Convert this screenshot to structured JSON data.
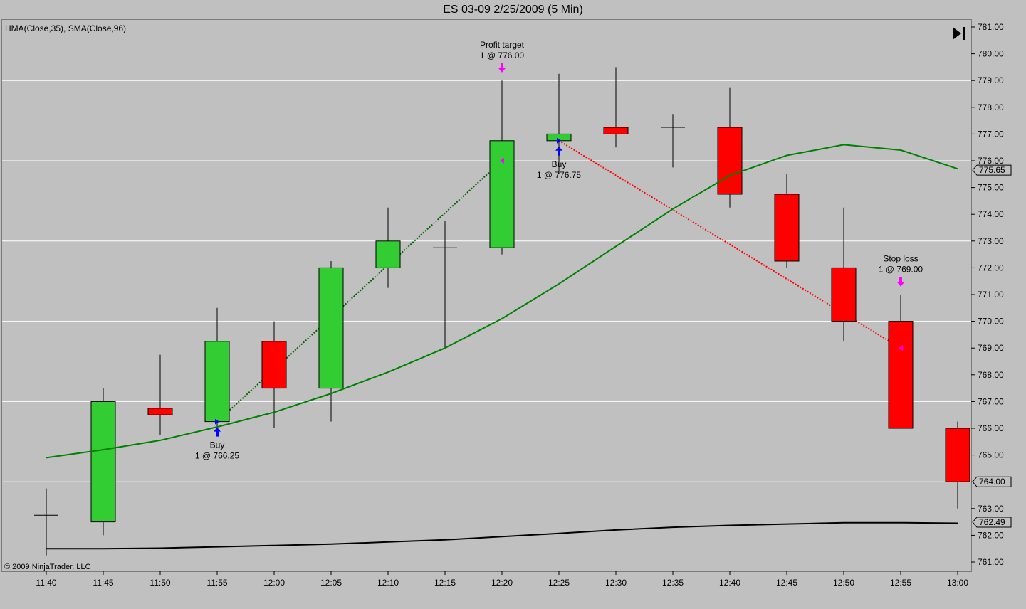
{
  "title": "ES 03-09  2/25/2009 (5 Min)",
  "indicator_label": "HMA(Close,35), SMA(Close,96)",
  "copyright": "© 2009 NinjaTrader, LLC",
  "goto_end_icon": "skip-to-end-icon",
  "colors": {
    "background": "#c0c0c0",
    "up": "#32cd32",
    "down": "#ff0000",
    "hma": "#008000",
    "sma": "#000000",
    "marker": "#ff00ff",
    "buy": "#0000ff"
  },
  "chart_data": {
    "type": "candlestick",
    "ylim": [
      760.6,
      781.3
    ],
    "y_ticks": [
      "761.00",
      "762.00",
      "763.00",
      "764.00",
      "765.00",
      "766.00",
      "767.00",
      "768.00",
      "769.00",
      "770.00",
      "771.00",
      "772.00",
      "773.00",
      "774.00",
      "775.00",
      "776.00",
      "777.00",
      "778.00",
      "779.00",
      "780.00",
      "781.00"
    ],
    "y_tick_values": [
      761,
      762,
      763,
      764,
      765,
      766,
      767,
      768,
      769,
      770,
      771,
      772,
      773,
      774,
      775,
      776,
      777,
      778,
      779,
      780,
      781
    ],
    "gridlines": [
      764,
      767,
      770,
      773,
      776,
      779
    ],
    "candles": [
      {
        "time": "11:40",
        "open": 762.75,
        "high": 763.75,
        "low": 761.25,
        "close": 762.75
      },
      {
        "time": "11:45",
        "open": 762.5,
        "high": 767.5,
        "low": 762.0,
        "close": 767.0
      },
      {
        "time": "11:50",
        "open": 766.75,
        "high": 768.75,
        "low": 765.75,
        "close": 766.5
      },
      {
        "time": "11:55",
        "open": 766.25,
        "high": 770.5,
        "low": 766.0,
        "close": 769.25
      },
      {
        "time": "12:00",
        "open": 769.25,
        "high": 770.0,
        "low": 766.0,
        "close": 767.5
      },
      {
        "time": "12:05",
        "open": 767.5,
        "high": 772.25,
        "low": 766.25,
        "close": 772.0
      },
      {
        "time": "12:10",
        "open": 772.0,
        "high": 774.25,
        "low": 771.25,
        "close": 773.0
      },
      {
        "time": "12:15",
        "open": 772.75,
        "high": 773.75,
        "low": 769.0,
        "close": 772.75
      },
      {
        "time": "12:20",
        "open": 772.75,
        "high": 779.0,
        "low": 772.5,
        "close": 776.75
      },
      {
        "time": "12:25",
        "open": 776.75,
        "high": 779.25,
        "low": 775.5,
        "close": 777.0
      },
      {
        "time": "12:30",
        "open": 777.25,
        "high": 779.5,
        "low": 776.5,
        "close": 777.0
      },
      {
        "time": "12:35",
        "open": 777.25,
        "high": 777.75,
        "low": 775.75,
        "close": 777.25
      },
      {
        "time": "12:40",
        "open": 777.25,
        "high": 778.75,
        "low": 774.25,
        "close": 774.75
      },
      {
        "time": "12:45",
        "open": 774.75,
        "high": 775.5,
        "low": 772.0,
        "close": 772.25
      },
      {
        "time": "12:50",
        "open": 772.0,
        "high": 774.25,
        "low": 769.25,
        "close": 770.0
      },
      {
        "time": "12:55",
        "open": 770.0,
        "high": 771.0,
        "low": 766.0,
        "close": 766.0
      },
      {
        "time": "13:00",
        "open": 766.0,
        "high": 766.25,
        "low": 763.0,
        "close": 764.0
      }
    ],
    "series": [
      {
        "name": "HMA(Close,35)",
        "values": [
          764.9,
          765.2,
          765.55,
          766.05,
          766.6,
          767.3,
          768.1,
          769.0,
          770.1,
          771.4,
          772.8,
          774.2,
          775.45,
          776.2,
          776.6,
          776.4,
          775.7
        ]
      },
      {
        "name": "SMA(Close,96)",
        "values": [
          761.5,
          761.5,
          761.52,
          761.57,
          761.62,
          761.67,
          761.75,
          761.83,
          761.95,
          762.07,
          762.2,
          762.3,
          762.37,
          762.42,
          762.47,
          762.47,
          762.45
        ]
      }
    ],
    "last_values": [
      {
        "label": "775.65",
        "value": 775.65
      },
      {
        "label": "764.00",
        "value": 764.0
      },
      {
        "label": "762.49",
        "value": 762.49
      }
    ],
    "trades": [
      {
        "entry_index": 3,
        "entry_price": 766.25,
        "exit_index": 8,
        "exit_price": 776.0,
        "color": "#006400"
      },
      {
        "entry_index": 9,
        "entry_price": 776.75,
        "exit_index": 15,
        "exit_price": 769.0,
        "color": "#ff0000"
      }
    ],
    "annotations": [
      {
        "index": 3,
        "price": 766.25,
        "kind": "buy",
        "lines": [
          "Buy",
          "1 @ 766.25"
        ]
      },
      {
        "index": 9,
        "price": 776.75,
        "kind": "buy",
        "lines": [
          "Buy",
          "1 @ 776.75"
        ]
      },
      {
        "index": 8,
        "price": 776.0,
        "kind": "exit",
        "lines": [
          "Profit target",
          "1 @ 776.00"
        ],
        "arrow_price": 779.3
      },
      {
        "index": 15,
        "price": 769.0,
        "kind": "exit",
        "lines": [
          "Stop loss",
          "1 @ 769.00"
        ],
        "arrow_price": 771.3
      }
    ]
  }
}
